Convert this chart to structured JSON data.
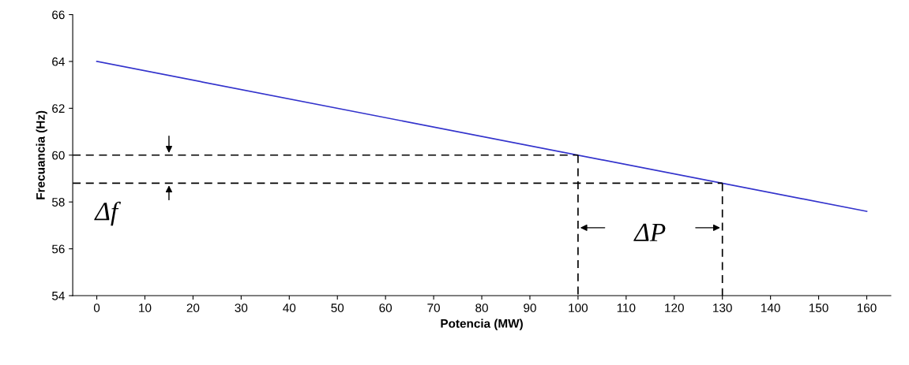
{
  "chart_data": {
    "type": "line",
    "xlabel": "Potencia (MW)",
    "ylabel": "Frecuancia (Hz)",
    "xlim": [
      -5,
      165
    ],
    "xticks": [
      0,
      10,
      20,
      30,
      40,
      50,
      60,
      70,
      80,
      90,
      100,
      110,
      120,
      130,
      140,
      150,
      160
    ],
    "ylim": [
      54,
      66
    ],
    "yticks": [
      54,
      56,
      58,
      60,
      62,
      64,
      66
    ],
    "grid": false,
    "series": [
      {
        "color": "#3333cc",
        "x": [
          0,
          160
        ],
        "values": [
          64,
          57.6
        ],
        "line_style": "solid"
      },
      {
        "color": "#000000",
        "x": [
          -5,
          100
        ],
        "values": [
          60,
          60
        ],
        "line_style": "dashed"
      },
      {
        "color": "#000000",
        "x": [
          -5,
          130
        ],
        "values": [
          58.8,
          58.8
        ],
        "line_style": "dashed"
      },
      {
        "color": "#000000",
        "x": [
          100,
          100
        ],
        "values": [
          60,
          54
        ],
        "line_style": "dashed"
      },
      {
        "color": "#000000",
        "x": [
          130,
          130
        ],
        "values": [
          58.8,
          54
        ],
        "line_style": "dashed"
      }
    ],
    "annotations": [
      "Δf",
      "ΔP"
    ]
  }
}
